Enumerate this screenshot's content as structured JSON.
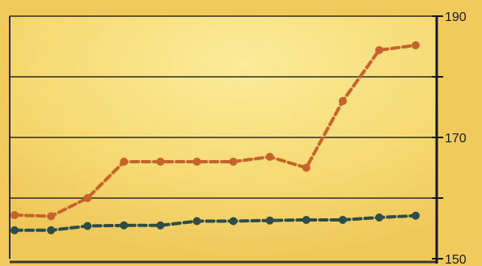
{
  "chart_data": {
    "type": "line",
    "title": "",
    "xlabel": "",
    "ylabel": "",
    "x": [
      1,
      2,
      3,
      4,
      5,
      6,
      7,
      8,
      9,
      10,
      11,
      12
    ],
    "ylim": [
      150,
      190
    ],
    "y_ticks": [
      150,
      160,
      170,
      180,
      190
    ],
    "y_tick_labels": [
      "150",
      "",
      "170",
      "",
      "190"
    ],
    "grid": "horizontal",
    "series": [
      {
        "color": "#c8622b",
        "values": [
          157.2,
          157.0,
          160.0,
          166.0,
          166.0,
          166.0,
          166.0,
          166.8,
          165.0,
          176.0,
          184.4,
          185.2
        ]
      },
      {
        "color": "#2d4d4a",
        "values": [
          154.7,
          154.7,
          155.4,
          155.5,
          155.5,
          156.2,
          156.2,
          156.3,
          156.4,
          156.4,
          156.8,
          157.1
        ]
      }
    ]
  }
}
